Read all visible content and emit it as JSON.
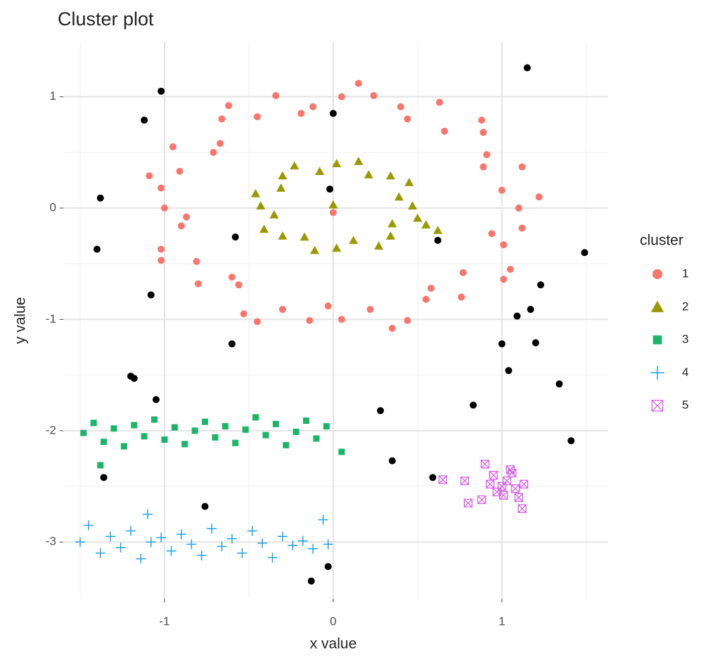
{
  "chart_data": {
    "type": "scatter",
    "title": "Cluster plot",
    "x_label": "x value",
    "y_label": "y value",
    "legend_title": "cluster",
    "legend_position": "right",
    "grid": true,
    "xlim": [
      -1.6,
      1.63
    ],
    "ylim": [
      -3.51,
      1.49
    ],
    "xticks": [
      -1,
      0,
      1
    ],
    "yticks": [
      1,
      0,
      -1,
      -2,
      -3
    ],
    "xminorticks": [
      -1.5,
      -0.5,
      0.5,
      1.5
    ],
    "yminorticks": [
      0.5,
      -0.5,
      -1.5,
      -2.5
    ],
    "series": [
      {
        "name": "1",
        "color": "#F8766D",
        "shape": "circle",
        "x": [
          1.1,
          1.0,
          1.12,
          0.91,
          0.89,
          0.66,
          0.63,
          0.4,
          0.24,
          0.05,
          -0.12,
          -0.34,
          -0.45,
          -0.66,
          -0.67,
          -0.95,
          -0.91,
          -1.02,
          -1.0,
          -0.9,
          -1.02,
          -0.81,
          -0.8,
          -0.56,
          -0.53,
          -0.3,
          -0.14,
          0.05,
          0.22,
          0.44,
          0.55,
          0.76,
          0.77,
          1.05,
          1.01,
          1.12,
          1.22,
          0.89,
          0.88,
          0.44,
          0.15,
          -0.19,
          -0.62,
          -0.71,
          -1.09,
          -0.87,
          -1.02,
          -0.6,
          -0.45,
          -0.03,
          0.35,
          0.58,
          1.01,
          0.94,
          0.0
        ],
        "y": [
          0,
          0.16,
          0.37,
          0.48,
          0.68,
          0.69,
          0.95,
          0.91,
          1.01,
          1.0,
          0.91,
          1.01,
          0.82,
          0.8,
          0.58,
          0.55,
          0.33,
          0.18,
          0,
          -0.16,
          -0.37,
          -0.48,
          -0.68,
          -0.69,
          -0.95,
          -0.91,
          -1.01,
          -1.0,
          -0.91,
          -1.01,
          -0.82,
          -0.8,
          -0.58,
          -0.55,
          -0.33,
          -0.18,
          0.1,
          0.37,
          0.79,
          0.8,
          1.12,
          0.85,
          0.92,
          0.5,
          0.29,
          -0.08,
          -0.47,
          -0.62,
          -1.02,
          -0.88,
          -1.08,
          -0.72,
          -0.64,
          -0.23,
          -0.04
        ]
      },
      {
        "name": "2",
        "color": "#999900",
        "shape": "triangle",
        "x": [
          0.47,
          0.39,
          0.45,
          0.34,
          0.21,
          0.15,
          0.02,
          -0.08,
          -0.23,
          -0.3,
          -0.31,
          -0.46,
          -0.43,
          -0.35,
          -0.41,
          -0.3,
          -0.17,
          -0.11,
          0.02,
          0.12,
          0.27,
          0.34,
          0.35,
          0.5,
          0.0,
          0.55,
          0.62
        ],
        "y": [
          0.02,
          0.1,
          0.23,
          0.29,
          0.3,
          0.42,
          0.4,
          0.33,
          0.38,
          0.29,
          0.18,
          0.13,
          0.02,
          -0.06,
          -0.19,
          -0.25,
          -0.26,
          -0.38,
          -0.36,
          -0.29,
          -0.34,
          -0.25,
          -0.14,
          -0.09,
          0.03,
          -0.15,
          -0.2
        ]
      },
      {
        "name": "3",
        "color": "#1AB56B",
        "shape": "square",
        "x": [
          -1.48,
          -1.42,
          -1.36,
          -1.3,
          -1.24,
          -1.18,
          -1.12,
          -1.06,
          -1.0,
          -0.94,
          -0.88,
          -0.82,
          -0.76,
          -0.7,
          -0.64,
          -0.58,
          -0.52,
          -0.46,
          -0.4,
          -0.34,
          -0.28,
          -0.22,
          -0.16,
          -0.1,
          -0.04,
          0.05,
          -1.38
        ],
        "y": [
          -2.02,
          -1.93,
          -2.1,
          -1.98,
          -2.14,
          -1.95,
          -2.05,
          -1.9,
          -2.08,
          -1.97,
          -2.12,
          -2.0,
          -1.92,
          -2.06,
          -1.96,
          -2.11,
          -1.99,
          -1.88,
          -2.04,
          -1.94,
          -2.13,
          -2.01,
          -1.91,
          -2.07,
          -1.96,
          -2.19,
          -2.31
        ]
      },
      {
        "name": "4",
        "color": "#22A0E8",
        "shape": "plus",
        "x": [
          -1.5,
          -1.45,
          -1.38,
          -1.32,
          -1.26,
          -1.2,
          -1.14,
          -1.08,
          -1.02,
          -0.96,
          -0.9,
          -0.84,
          -0.78,
          -0.72,
          -0.66,
          -0.6,
          -0.54,
          -0.48,
          -0.42,
          -0.36,
          -0.3,
          -0.24,
          -0.18,
          -0.12,
          -0.06,
          -0.03,
          -1.1
        ],
        "y": [
          -3.0,
          -2.85,
          -3.1,
          -2.95,
          -3.05,
          -2.9,
          -3.15,
          -3.0,
          -2.96,
          -3.08,
          -2.93,
          -3.02,
          -3.12,
          -2.88,
          -3.04,
          -2.97,
          -3.1,
          -2.9,
          -3.01,
          -3.14,
          -2.95,
          -3.03,
          -2.99,
          -3.06,
          -2.8,
          -3.02,
          -2.75
        ]
      },
      {
        "name": "5",
        "color": "#D65FEA",
        "shape": "boxcross",
        "x": [
          0.9,
          0.95,
          1.0,
          1.05,
          1.1,
          1.12,
          0.97,
          1.03,
          1.08,
          0.88,
          0.93,
          1.01,
          1.06,
          0.78,
          0.65,
          0.8,
          1.13
        ],
        "y": [
          -2.3,
          -2.4,
          -2.5,
          -2.35,
          -2.6,
          -2.7,
          -2.55,
          -2.45,
          -2.52,
          -2.62,
          -2.48,
          -2.58,
          -2.38,
          -2.45,
          -2.44,
          -2.65,
          -2.48
        ]
      },
      {
        "color": "#000000",
        "shape": "circle",
        "x": [
          -1.02,
          1.15,
          -1.12,
          0.0,
          -1.38,
          -1.4,
          -0.02,
          -0.58,
          0.62,
          1.49,
          -1.08,
          1.23,
          1.17,
          1.09,
          -0.6,
          1.0,
          1.2,
          1.04,
          -1.2,
          -1.18,
          1.34,
          -1.05,
          0.28,
          0.83,
          1.41,
          0.35,
          -1.36,
          0.59,
          -0.76,
          -0.03,
          -0.13
        ],
        "y": [
          1.05,
          1.26,
          0.79,
          0.85,
          0.09,
          -0.37,
          0.17,
          -0.26,
          -0.29,
          -0.4,
          -0.78,
          -0.69,
          -0.91,
          -0.97,
          -1.22,
          -1.22,
          -1.21,
          -1.46,
          -1.51,
          -1.53,
          -1.58,
          -1.72,
          -1.82,
          -1.77,
          -2.09,
          -2.27,
          -2.42,
          -2.42,
          -2.68,
          -3.22,
          -3.35
        ]
      }
    ]
  }
}
